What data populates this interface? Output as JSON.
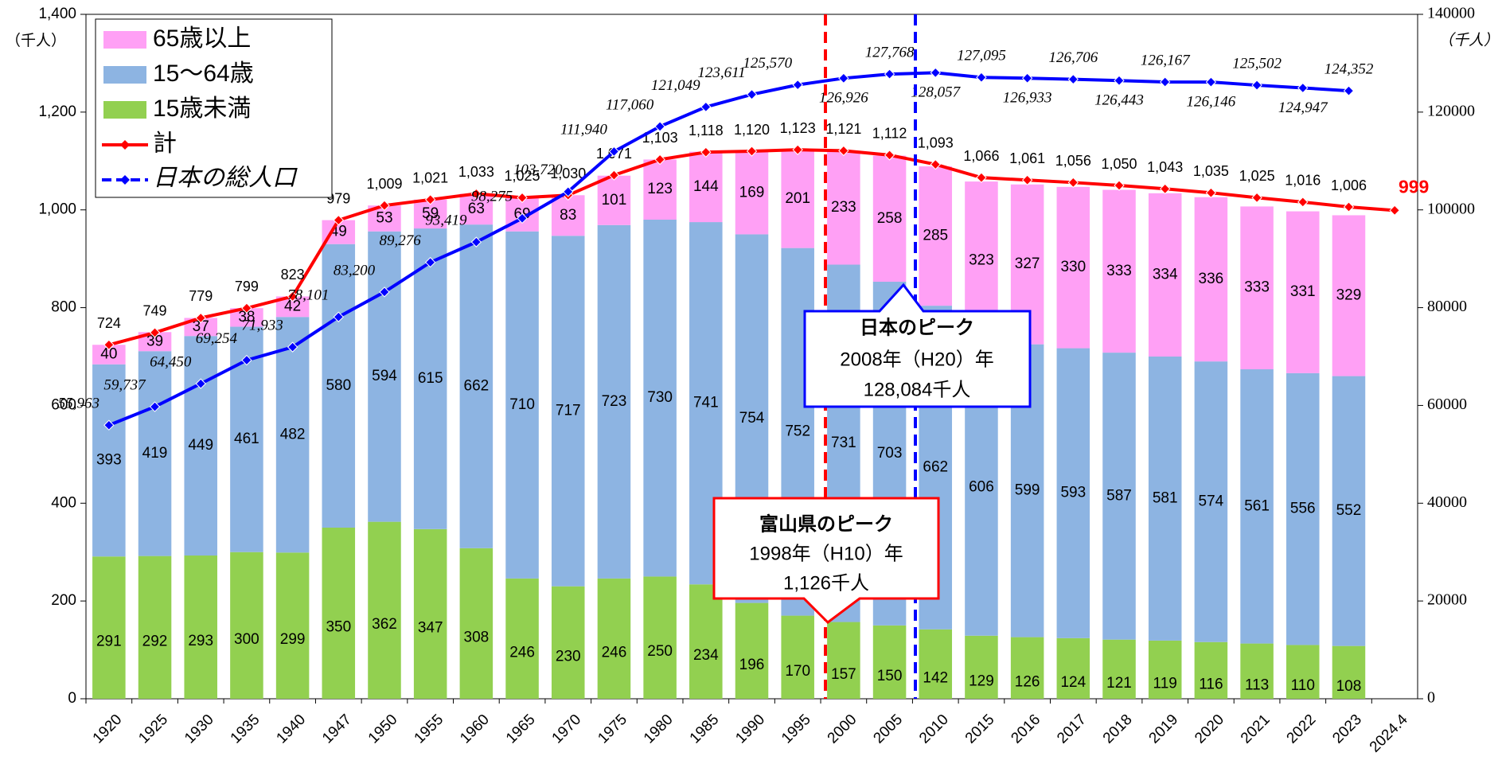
{
  "chart_data": {
    "type": "stacked_bar_line",
    "categories": [
      "1920",
      "1925",
      "1930",
      "1935",
      "1940",
      "1947",
      "1950",
      "1955",
      "1960",
      "1965",
      "1970",
      "1975",
      "1980",
      "1985",
      "1990",
      "1995",
      "2000",
      "2005",
      "2010",
      "2015",
      "2016",
      "2017",
      "2018",
      "2019",
      "2020",
      "2021",
      "2022",
      "2023",
      "2024.4"
    ],
    "series": [
      {
        "name": "65歳以上",
        "kind": "bar",
        "color": "#ffa0f5",
        "values": [
          40,
          39,
          37,
          38,
          42,
          49,
          53,
          59,
          63,
          69,
          83,
          101,
          123,
          144,
          169,
          201,
          233,
          258,
          285,
          323,
          327,
          330,
          333,
          334,
          336,
          333,
          331,
          329,
          null
        ]
      },
      {
        "name": "15～64歳",
        "kind": "bar",
        "color": "#8db4e2",
        "values": [
          393,
          419,
          449,
          461,
          482,
          580,
          594,
          615,
          662,
          710,
          717,
          723,
          730,
          741,
          754,
          752,
          731,
          703,
          662,
          606,
          599,
          593,
          587,
          581,
          574,
          561,
          556,
          552,
          null
        ]
      },
      {
        "name": "15歳未満",
        "kind": "bar",
        "color": "#92d050",
        "values": [
          291,
          292,
          293,
          300,
          299,
          350,
          362,
          347,
          308,
          246,
          230,
          246,
          250,
          234,
          196,
          170,
          157,
          150,
          142,
          129,
          126,
          124,
          121,
          119,
          116,
          113,
          110,
          108,
          null
        ]
      },
      {
        "name": "計",
        "kind": "line",
        "color": "#ff0000",
        "values": [
          724,
          749,
          779,
          799,
          823,
          979,
          1009,
          1021,
          1033,
          1025,
          1030,
          1071,
          1103,
          1118,
          1120,
          1123,
          1121,
          1112,
          1093,
          1066,
          1061,
          1056,
          1050,
          1043,
          1035,
          1025,
          1016,
          1006,
          999
        ],
        "value_labels": [
          "724",
          "749",
          "779",
          "799",
          "823",
          "979",
          "1,009",
          "1,021",
          "1,033",
          "1,025",
          "1,030",
          "1,071",
          "1,103",
          "1,118",
          "1,120",
          "1,123",
          "1,121",
          "1,112",
          "1,093",
          "1,066",
          "1,061",
          "1,056",
          "1,050",
          "1,043",
          "1,035",
          "1,025",
          "1,016",
          "1,006",
          "999"
        ]
      },
      {
        "name": "日本の総人口",
        "kind": "line",
        "axis": "y2",
        "color": "#0000ff",
        "values": [
          55963,
          59737,
          64450,
          69254,
          71933,
          78101,
          83200,
          89276,
          93419,
          98275,
          103720,
          111940,
          117060,
          121049,
          123611,
          125570,
          126926,
          127768,
          128057,
          127095,
          126933,
          126706,
          126443,
          126167,
          126146,
          125502,
          124947,
          124352,
          null
        ],
        "value_labels": [
          "55,963",
          "59,737",
          "64,450",
          "69,254",
          "71,933",
          "78,101",
          "83,200",
          "89,276",
          "93,419",
          "98,275",
          "103,720",
          "111,940",
          "117,060",
          "121,049",
          "123,611",
          "125,570",
          "126,926",
          "127,768",
          "128,057",
          "127,095",
          "126,933",
          "126,706",
          "126,443",
          "126,167",
          "126,146",
          "125,502",
          "124,947",
          "124,352",
          null
        ]
      }
    ],
    "y_label": "（千人）",
    "y2_label": "（千人）",
    "ylim": [
      0,
      1400
    ],
    "yticks": [
      0,
      200,
      400,
      600,
      800,
      {
        "value": 1000,
        "label": "1,000"
      },
      {
        "value": 1200,
        "label": "1,200"
      },
      {
        "value": 1400,
        "label": "1,400"
      }
    ],
    "y2lim": [
      0,
      140000
    ],
    "y2ticks": [
      0,
      20000,
      40000,
      60000,
      80000,
      100000,
      120000,
      140000
    ],
    "legend": "upper left",
    "annotations": [
      {
        "title": "日本のピーク",
        "line1": "2008年（H20）年",
        "line2": "128,084千人"
      },
      {
        "title": "富山県のピーク",
        "line1": "1998年（H10）年",
        "line2": "1,126千人"
      }
    ]
  }
}
